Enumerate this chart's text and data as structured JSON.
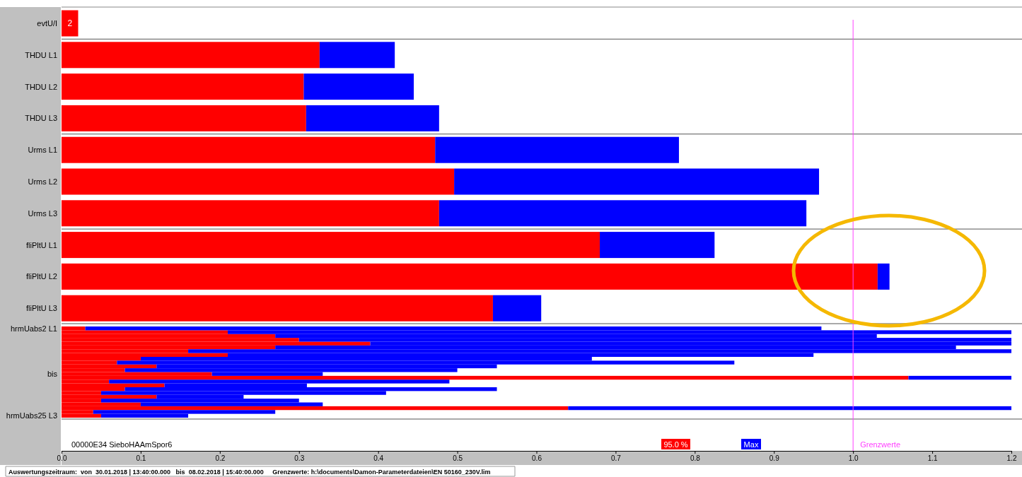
{
  "chart_data": {
    "type": "bar",
    "orientation": "horizontal",
    "stacked": true,
    "categories": [
      "evtU/I",
      "THDU L1",
      "THDU L2",
      "THDU L3",
      "Urms L1",
      "Urms L2",
      "Urms L3",
      "fliPltU L1",
      "fliPltU L2",
      "fliPltU L3",
      "hrmUabs2 L1",
      null,
      null,
      null,
      null,
      null,
      null,
      null,
      null,
      null,
      null,
      null,
      "bis",
      null,
      null,
      null,
      null,
      null,
      null,
      null,
      null,
      null,
      null,
      "hrmUabs25 L3"
    ],
    "series": [
      {
        "name": "95.0 %",
        "color": "#ff0000",
        "values": [
          0.021,
          0.326,
          0.306,
          0.309,
          0.472,
          0.496,
          0.477,
          0.68,
          1.031,
          0.545,
          0.03,
          0.21,
          0.27,
          0.3,
          0.39,
          0.27,
          0.16,
          0.21,
          0.1,
          0.07,
          0.12,
          0.08,
          0.19,
          1.07,
          0.06,
          0.13,
          0.08,
          0.05,
          0.12,
          0.05,
          0.1,
          0.64,
          0.04,
          0.05
        ]
      },
      {
        "name": "Max",
        "color": "#0000ff",
        "values": [
          null,
          0.095,
          0.139,
          0.168,
          0.308,
          0.461,
          0.464,
          0.145,
          0.015,
          0.061,
          0.93,
          0.99,
          0.76,
          0.9,
          0.81,
          0.86,
          1.04,
          0.74,
          0.57,
          0.78,
          0.43,
          0.42,
          0.14,
          0.13,
          0.43,
          0.18,
          0.47,
          0.36,
          0.11,
          0.25,
          0.23,
          0.56,
          0.23,
          0.11
        ]
      }
    ],
    "xlim": [
      0,
      1.2
    ],
    "xticks": [
      {
        "value": 0,
        "label": "0.0"
      },
      0.1,
      0.2,
      0.3,
      0.4,
      0.5,
      0.6,
      0.7,
      0.8,
      0.9,
      {
        "value": 1,
        "label": "1.0"
      },
      1.1,
      1.2
    ],
    "ref_lines": [
      {
        "axis": "x",
        "value": 1,
        "label": "Grenzwerte",
        "color": "#ff40ff"
      }
    ],
    "legend": "bottom",
    "annotations": [
      {
        "text": "2",
        "x": 0.021,
        "y": "evtU/I"
      },
      "00000E34 SieboHAAmSpor6",
      "Auswertungszeitraum:  von  30.01.2018 | 13:40:00.000   bis  08.02.2018 | 15:40:00.000     Grenzwerte: h:\\documents\\Damon-Parameterdateien\\EN 50160_230V.lim"
    ]
  }
}
